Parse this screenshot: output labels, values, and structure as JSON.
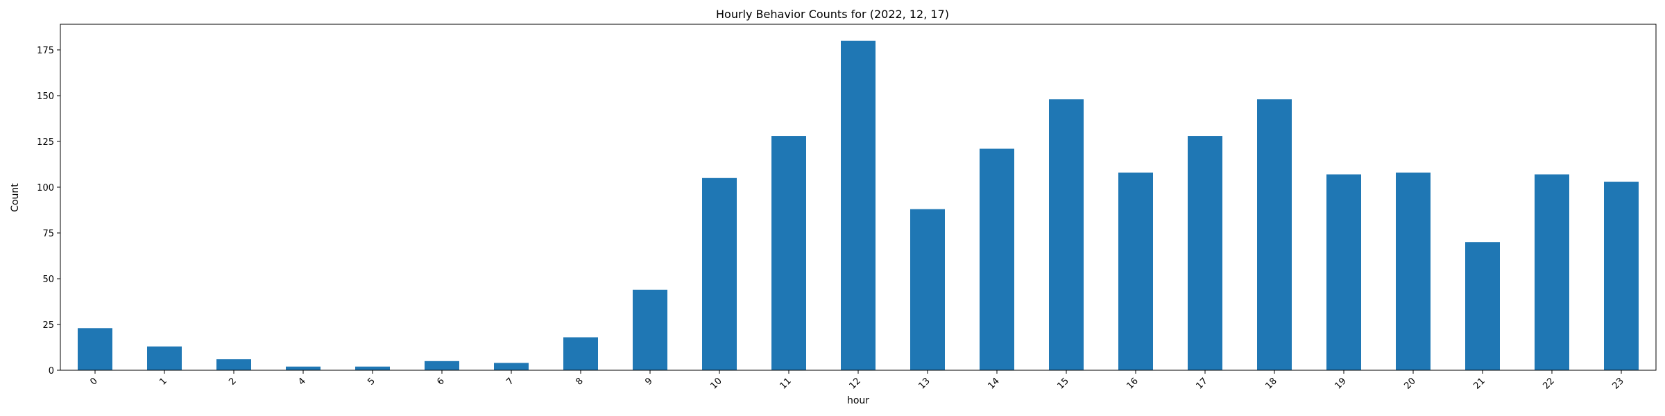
{
  "chart_data": {
    "type": "bar",
    "title": "Hourly Behavior Counts for (2022, 12, 17)",
    "xlabel": "hour",
    "ylabel": "Count",
    "categories": [
      "0",
      "1",
      "2",
      "4",
      "5",
      "6",
      "7",
      "8",
      "9",
      "10",
      "11",
      "12",
      "13",
      "14",
      "15",
      "16",
      "17",
      "18",
      "19",
      "20",
      "21",
      "22",
      "23"
    ],
    "values": [
      23,
      13,
      6,
      2,
      2,
      5,
      4,
      18,
      44,
      105,
      128,
      180,
      88,
      121,
      148,
      108,
      128,
      148,
      107,
      108,
      70,
      107,
      103
    ],
    "ylim": [
      0,
      189
    ],
    "yticks": [
      0,
      25,
      50,
      75,
      100,
      125,
      150,
      175
    ],
    "grid": false,
    "legend": "none",
    "bar_color": "#1f77b4"
  }
}
